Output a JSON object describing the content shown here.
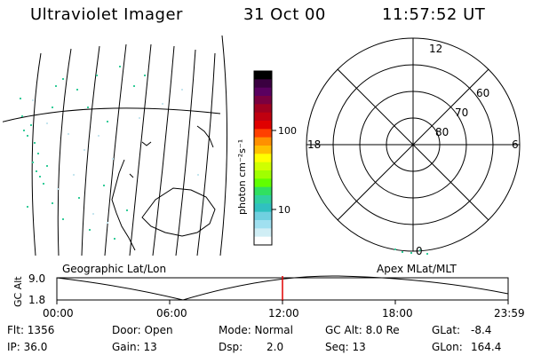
{
  "header": {
    "instrument": "Ultraviolet Imager",
    "date": "31 Oct 00",
    "time": "11:57:52 UT"
  },
  "colorbar": {
    "unit_label": "photon cm⁻²s⁻¹",
    "tick_100": "100",
    "tick_10": "10",
    "colors": [
      "#000000",
      "#3a0040",
      "#5a0060",
      "#7a0040",
      "#a00020",
      "#c00010",
      "#e00000",
      "#ff4000",
      "#ff9000",
      "#ffc000",
      "#ffff00",
      "#d0ff00",
      "#a0ff00",
      "#60ff00",
      "#30e060",
      "#30d0a0",
      "#30c0c0",
      "#70d0e0",
      "#a0e0f0",
      "#d0eef5",
      "#ffffff"
    ]
  },
  "polar": {
    "mlt_12": "12",
    "mlt_18": "18",
    "mlt_6": "6",
    "mlt_0": "0",
    "lat_60": "60",
    "lat_70": "70",
    "lat_80": "80"
  },
  "panels": {
    "left_caption": "Geographic Lat/Lon",
    "right_caption": "Apex MLat/MLT"
  },
  "timeline": {
    "axis_title": "GC Alt",
    "y_top": "9.0",
    "y_bottom": "1.8",
    "ticks": [
      "00:00",
      "06:00",
      "12:00",
      "18:00",
      "23:59"
    ],
    "current_time_fraction": 0.5
  },
  "info": {
    "flt": "Flt: 1356",
    "door": "Door: Open",
    "mode": "Mode: Normal",
    "gcalt": "GC Alt: 8.0 Re",
    "glat_label": "GLat:",
    "glat_value": "-8.4",
    "ip": "IP: 36.0",
    "gain": "Gain: 13",
    "dsp_label": "Dsp:",
    "dsp_value": "2.0",
    "seq": "Seq: 13",
    "glon_label": "GLon:",
    "glon_value": "164.4"
  }
}
